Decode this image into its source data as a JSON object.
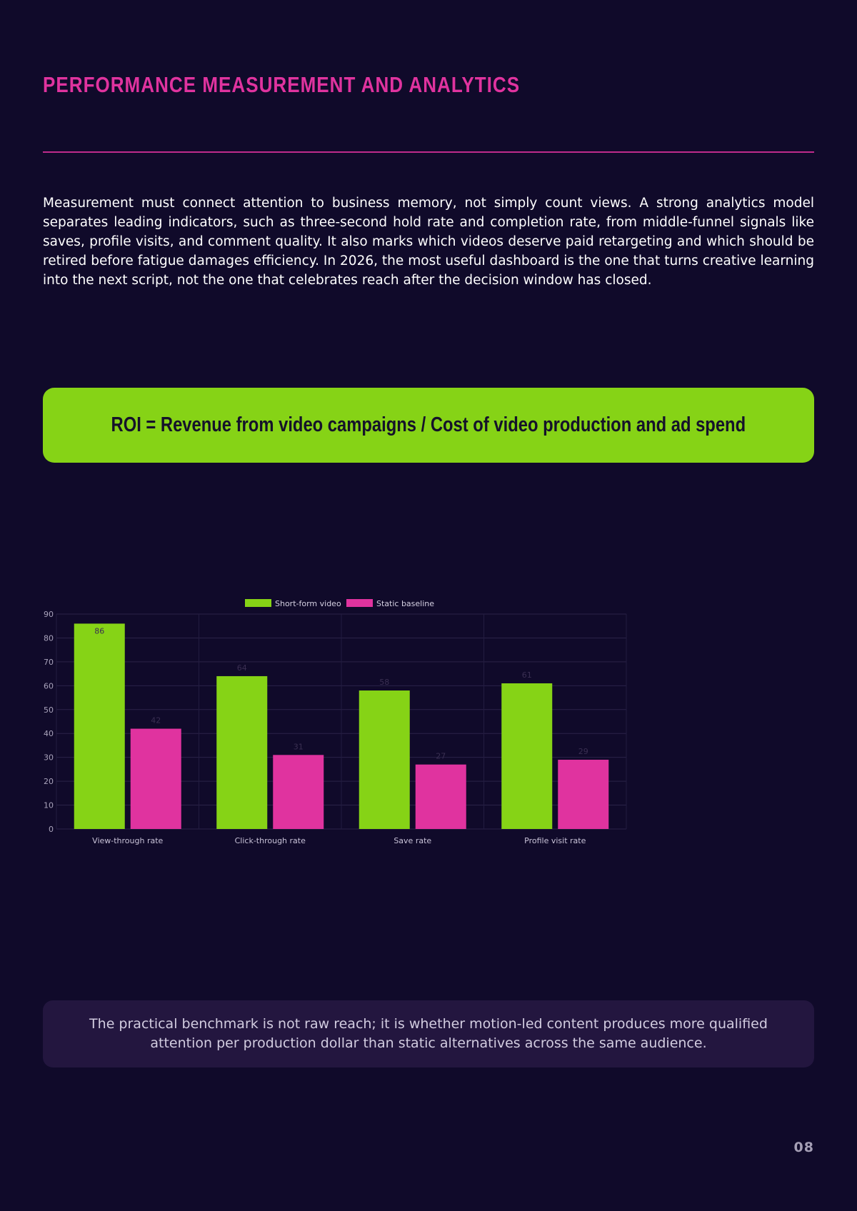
{
  "page": {
    "title": "PERFORMANCE MEASUREMENT AND ANALYTICS",
    "body": "Measurement must connect attention to business memory, not simply count views. A strong analytics model separates leading indicators, such as three-second hold rate and completion rate, from middle-funnel signals like saves, profile visits, and comment quality. It also marks which videos deserve paid retargeting and which should be retired before fatigue damages efficiency. In 2026, the most useful dashboard is the one that turns creative learning into the next script, not the one that celebrates reach after the decision window has closed.",
    "formula": "ROI = Revenue from video campaigns / Cost of video production and ad spend",
    "note": "The practical benchmark is not raw reach; it is whether motion-led content produces more qualified attention per production dollar than static alternatives across the same audience.",
    "page_number": "08"
  },
  "colors": {
    "background": "#100a2a",
    "accent_pink": "#e0339f",
    "accent_green": "#86d316",
    "note_background": "#23163f"
  },
  "chart_data": {
    "type": "bar",
    "categories": [
      "View-through rate",
      "Click-through rate",
      "Save rate",
      "Profile visit rate"
    ],
    "series": [
      {
        "name": "Short-form video",
        "values": [
          86,
          64,
          58,
          61
        ],
        "color": "#86d316"
      },
      {
        "name": "Static baseline",
        "values": [
          42,
          31,
          27,
          29
        ],
        "color": "#e0339f"
      }
    ],
    "ylim": [
      0,
      90
    ],
    "yticks": [
      0,
      10,
      20,
      30,
      40,
      50,
      60,
      70,
      80,
      90
    ],
    "grid": true,
    "legend": "top-center",
    "data_labels": true
  }
}
